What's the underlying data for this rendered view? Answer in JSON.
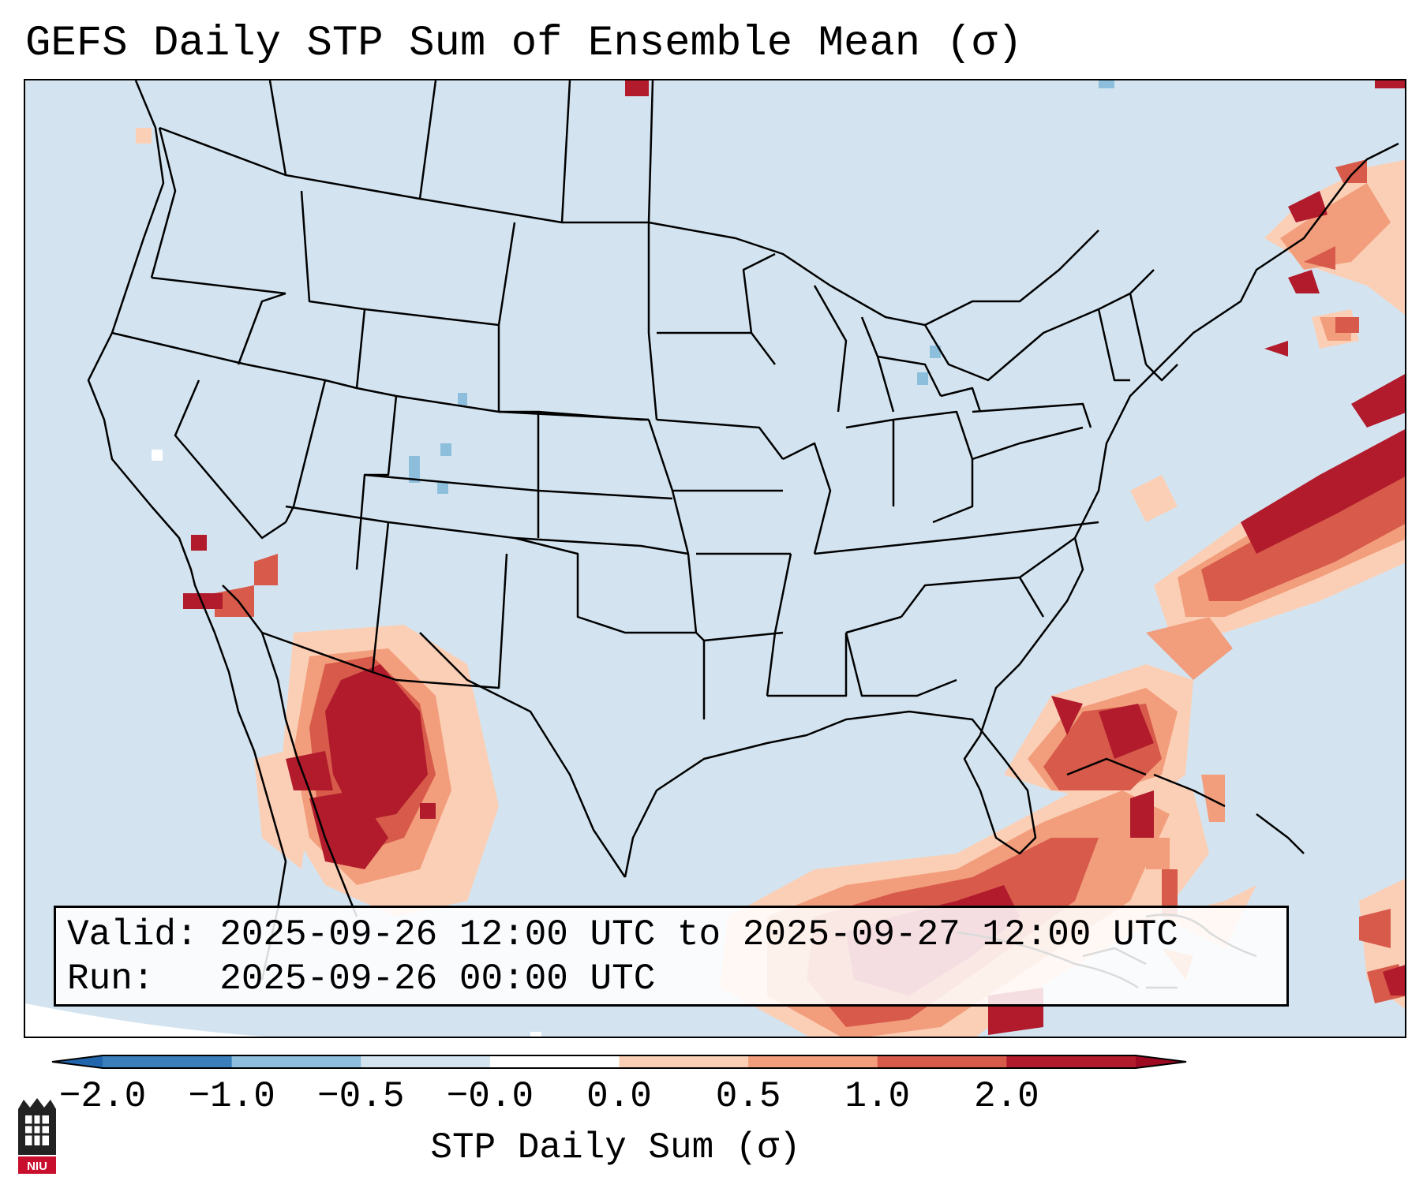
{
  "title": "GEFS Daily STP Sum of Ensemble Mean (σ)",
  "info": {
    "valid_line": "Valid: 2025-09-26 12:00 UTC to 2025-09-27 12:00 UTC",
    "run_line": "Run:   2025-09-26 00:00 UTC"
  },
  "colorbar": {
    "label": "STP Daily Sum (σ)",
    "ticks": [
      "−2.0",
      "−1.0",
      "−0.5",
      "−0.0",
      "0.0",
      "0.5",
      "1.0",
      "2.0"
    ],
    "bin_colors": [
      "#3a7fbc",
      "#8dbfdd",
      "#d3e4f0",
      "#ffffff",
      "#fbcfb6",
      "#f29e7c",
      "#d75a4a",
      "#b11b2c"
    ],
    "extend_low_color": "#2166ac",
    "extend_high_color": "#9e0a22"
  },
  "logo": {
    "text": "NIU"
  },
  "colors": {
    "ocean_background": "#d3e4f0",
    "state_lines": "#000000"
  }
}
